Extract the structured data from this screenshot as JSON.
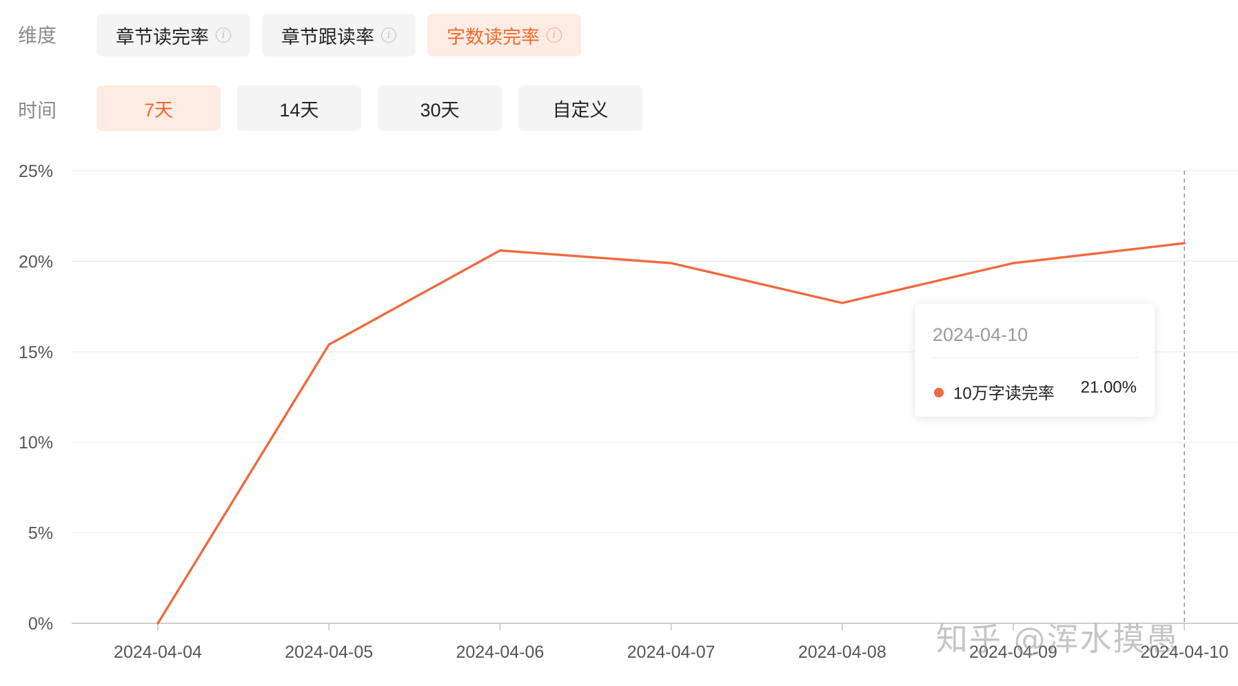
{
  "filters": {
    "dimension_label": "维度",
    "dimension_options": [
      {
        "label": "章节读完率",
        "active": false
      },
      {
        "label": "章节跟读率",
        "active": false
      },
      {
        "label": "字数读完率",
        "active": true
      }
    ],
    "time_label": "时间",
    "time_options": [
      {
        "label": "7天",
        "active": true
      },
      {
        "label": "14天",
        "active": false
      },
      {
        "label": "30天",
        "active": false
      },
      {
        "label": "自定义",
        "active": false
      }
    ]
  },
  "tooltip": {
    "date": "2024-04-10",
    "series_name": "10万字读完率",
    "value": "21.00%"
  },
  "watermark": "知乎 @浑水摸愚",
  "colors": {
    "accent": "#ef6a2c",
    "line": "#ef6a3c",
    "active_bg": "#fdece3",
    "pill_bg": "#f4f4f4"
  },
  "chart_data": {
    "type": "line",
    "x": [
      "2024-04-04",
      "2024-04-05",
      "2024-04-06",
      "2024-04-07",
      "2024-04-08",
      "2024-04-09",
      "2024-04-10"
    ],
    "series": [
      {
        "name": "10万字读完率",
        "values": [
          0.0,
          15.4,
          20.6,
          19.9,
          17.7,
          19.9,
          21.0
        ]
      }
    ],
    "y_ticks": [
      "0%",
      "5%",
      "10%",
      "15%",
      "20%",
      "25%"
    ],
    "ylim": [
      0,
      25
    ],
    "grid": true,
    "highlight_x": "2024-04-10"
  }
}
